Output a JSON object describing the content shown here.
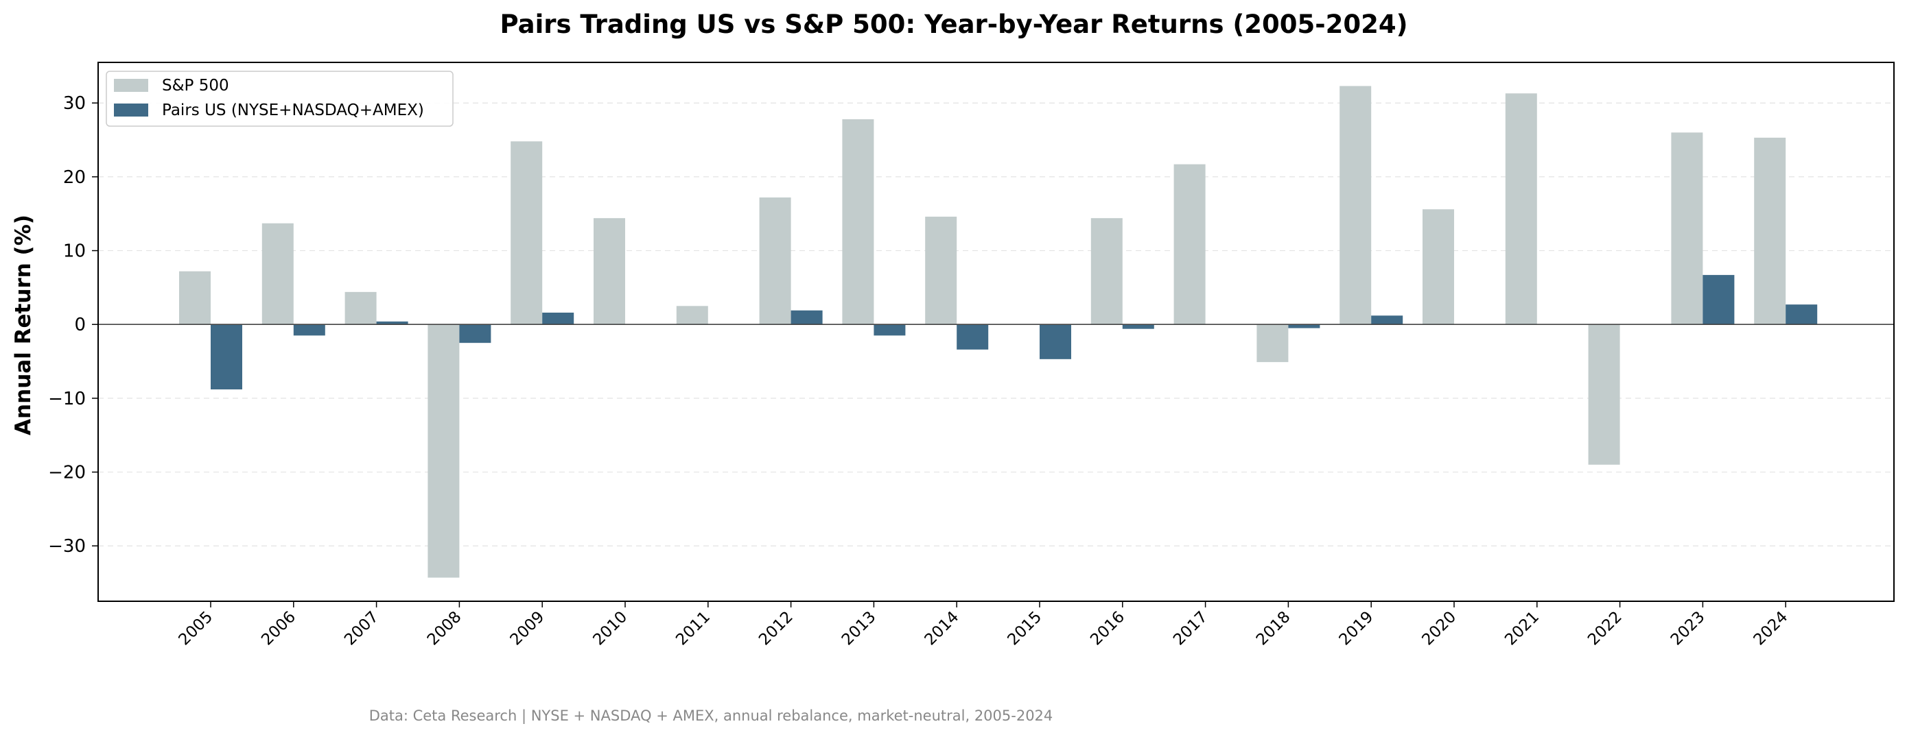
{
  "chart_data": {
    "type": "bar",
    "title": "Pairs Trading US vs S&P 500: Year-by-Year Returns (2005-2024)",
    "xlabel": "",
    "ylabel": "Annual Return (%)",
    "ylim": [
      -37.5,
      35.5
    ],
    "yticks": [
      -30,
      -20,
      -10,
      0,
      10,
      20,
      30
    ],
    "ytick_labels": [
      "−30",
      "−20",
      "−10",
      "0",
      "10",
      "20",
      "30"
    ],
    "grid": "horizontal dashed",
    "legend_position": "top-left",
    "categories": [
      "2005",
      "2006",
      "2007",
      "2008",
      "2009",
      "2010",
      "2011",
      "2012",
      "2013",
      "2014",
      "2015",
      "2016",
      "2017",
      "2018",
      "2019",
      "2020",
      "2021",
      "2022",
      "2023",
      "2024"
    ],
    "series": [
      {
        "name": "S&P 500",
        "color": "#c2cccc",
        "values": [
          7.2,
          13.7,
          4.4,
          -34.3,
          24.8,
          14.4,
          2.5,
          17.2,
          27.8,
          14.6,
          0.0,
          14.4,
          21.7,
          -5.1,
          32.3,
          15.6,
          31.3,
          -19.0,
          26.0,
          25.3
        ]
      },
      {
        "name": "Pairs US (NYSE+NASDAQ+AMEX)",
        "color": "#3f6a87",
        "values": [
          -8.8,
          -1.5,
          0.4,
          -2.5,
          1.6,
          0.0,
          0.0,
          1.9,
          -1.5,
          -3.4,
          -4.7,
          -0.6,
          0.0,
          -0.5,
          1.2,
          0.0,
          0.0,
          0.0,
          6.7,
          2.7
        ]
      }
    ],
    "source_note": "Data: Ceta Research | NYSE + NASDAQ + AMEX, annual rebalance, market-neutral, 2005-2024"
  }
}
